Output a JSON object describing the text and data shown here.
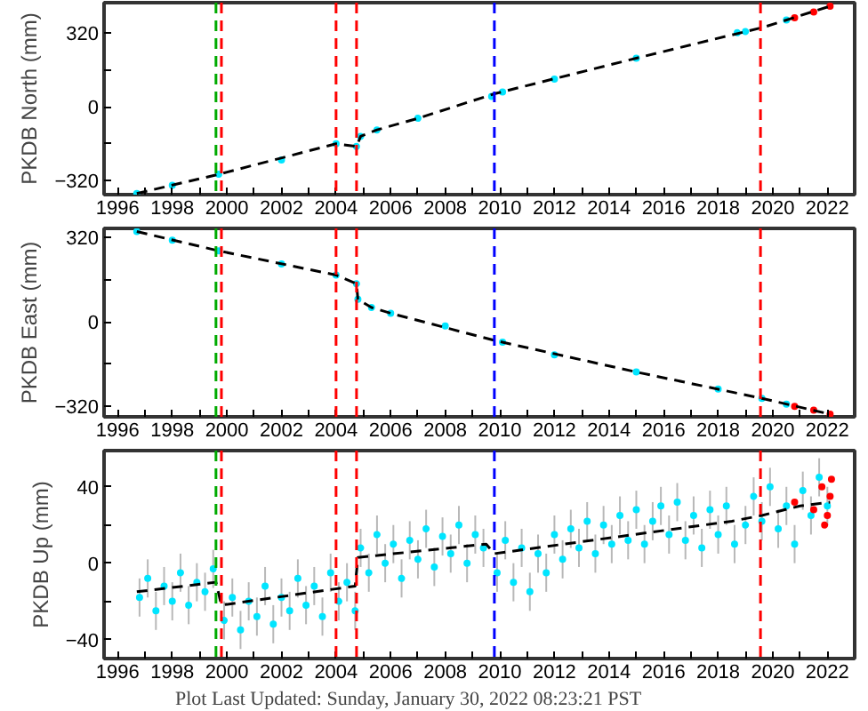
{
  "chart_data": [
    {
      "type": "scatter",
      "ylabel": "PKDB North (mm)",
      "xlim": [
        1995.5,
        2023
      ],
      "ylim": [
        -380,
        450
      ],
      "xticks": [
        1996,
        {
          "value": 1997,
          "label": null
        },
        1998,
        {
          "value": 1999,
          "label": null
        },
        2000,
        {
          "value": 2001,
          "label": null
        },
        2002,
        {
          "value": 2003,
          "label": null
        },
        2004,
        {
          "value": 2005,
          "label": null
        },
        2006,
        {
          "value": 2007,
          "label": null
        },
        2008,
        {
          "value": 2009,
          "label": null
        },
        2010,
        {
          "value": 2011,
          "label": null
        },
        2012,
        {
          "value": 2013,
          "label": null
        },
        2014,
        {
          "value": 2015,
          "label": null
        },
        2016,
        {
          "value": 2017,
          "label": null
        },
        2018,
        {
          "value": 2019,
          "label": null
        },
        2020,
        {
          "value": 2021,
          "label": null
        },
        2022
      ],
      "yticks": [
        {
          "value": -320,
          "label": "−320"
        },
        {
          "value": -160,
          "label": null
        },
        0,
        {
          "value": 160,
          "label": null
        },
        320
      ],
      "series": [
        {
          "marker": "circle",
          "color": "#00e5ff",
          "x": [
            1996.7,
            1998,
            1999.7,
            2002,
            2004,
            2004.75,
            2004.9,
            2005.5,
            2007,
            2009.7,
            2010.1,
            2012,
            2015,
            2018.7,
            2019,
            2020.5
          ],
          "values": [
            -375,
            -340,
            -292,
            -230,
            -160,
            -172,
            -128,
            -100,
            -50,
            45,
            64,
            120,
            210,
            320,
            325,
            375
          ]
        },
        {
          "marker": "circle",
          "color": "#ff0000",
          "x": [
            2020.8,
            2021.5,
            2022.1
          ],
          "values": [
            385,
            410,
            435
          ]
        },
        {
          "type": "line",
          "color": "#000000",
          "line_style": "dashed",
          "x": [
            1996.7,
            1999.7,
            2004,
            2004.75,
            2004.9,
            2005.5,
            2007,
            2009.8,
            2015,
            2019.7,
            2022.1
          ],
          "values": [
            -375,
            -292,
            -160,
            -172,
            -128,
            -100,
            -50,
            56,
            210,
            345,
            435
          ]
        }
      ],
      "ref_lines": [
        {
          "axis": "x",
          "value": 1999.6,
          "color": "#00aa00",
          "line_style": "dashed"
        },
        {
          "axis": "x",
          "value": 1999.8,
          "color": "#ff0000",
          "line_style": "dashed"
        },
        {
          "axis": "x",
          "value": 2004.0,
          "color": "#ff0000",
          "line_style": "dashed"
        },
        {
          "axis": "x",
          "value": 2004.75,
          "color": "#ff0000",
          "line_style": "dashed"
        },
        {
          "axis": "x",
          "value": 2009.8,
          "color": "#0000ff",
          "line_style": "dashed"
        },
        {
          "axis": "x",
          "value": 2019.55,
          "color": "#ff0000",
          "line_style": "dashed"
        }
      ]
    },
    {
      "type": "scatter",
      "ylabel": "PKDB East (mm)",
      "xlim": [
        1995.5,
        2023
      ],
      "ylim": [
        -360,
        355
      ],
      "xticks": [
        1996,
        {
          "value": 1997,
          "label": null
        },
        1998,
        {
          "value": 1999,
          "label": null
        },
        2000,
        {
          "value": 2001,
          "label": null
        },
        2002,
        {
          "value": 2003,
          "label": null
        },
        2004,
        {
          "value": 2005,
          "label": null
        },
        2006,
        {
          "value": 2007,
          "label": null
        },
        2008,
        {
          "value": 2009,
          "label": null
        },
        2010,
        {
          "value": 2011,
          "label": null
        },
        2012,
        {
          "value": 2013,
          "label": null
        },
        2014,
        {
          "value": 2015,
          "label": null
        },
        2016,
        {
          "value": 2017,
          "label": null
        },
        2018,
        {
          "value": 2019,
          "label": null
        },
        2020,
        {
          "value": 2021,
          "label": null
        },
        2022
      ],
      "yticks": [
        {
          "value": -320,
          "label": "−320"
        },
        {
          "value": -160,
          "label": null
        },
        0,
        {
          "value": 160,
          "label": null
        },
        320
      ],
      "series": [
        {
          "marker": "circle",
          "color": "#00e5ff",
          "x": [
            1996.7,
            1998,
            1999.7,
            2002,
            2004,
            2004.75,
            2004.8,
            2005.3,
            2006,
            2008,
            2010.1,
            2012,
            2015,
            2018,
            2019.6,
            2020.5
          ],
          "values": [
            343,
            310,
            270,
            220,
            178,
            145,
            86,
            55,
            33,
            -15,
            -77,
            -125,
            -190,
            -255,
            -290,
            -312
          ]
        },
        {
          "marker": "circle",
          "color": "#ff0000",
          "x": [
            2020.8,
            2021.5,
            2022.1
          ],
          "values": [
            -320,
            -335,
            -350
          ]
        },
        {
          "type": "line",
          "color": "#000000",
          "line_style": "dashed",
          "x": [
            1996.7,
            1999.7,
            2004,
            2004.75,
            2004.8,
            2005.3,
            2006,
            2009.8,
            2015,
            2019.6,
            2022.1
          ],
          "values": [
            343,
            270,
            178,
            145,
            86,
            55,
            33,
            -70,
            -190,
            -290,
            -350
          ]
        }
      ],
      "ref_lines": [
        {
          "axis": "x",
          "value": 1999.6,
          "color": "#00aa00",
          "line_style": "dashed"
        },
        {
          "axis": "x",
          "value": 1999.8,
          "color": "#ff0000",
          "line_style": "dashed"
        },
        {
          "axis": "x",
          "value": 2004.0,
          "color": "#ff0000",
          "line_style": "dashed"
        },
        {
          "axis": "x",
          "value": 2004.75,
          "color": "#ff0000",
          "line_style": "dashed"
        },
        {
          "axis": "x",
          "value": 2009.8,
          "color": "#0000ff",
          "line_style": "dashed"
        },
        {
          "axis": "x",
          "value": 2019.55,
          "color": "#ff0000",
          "line_style": "dashed"
        }
      ]
    },
    {
      "type": "scatter",
      "ylabel": "PKDB Up (mm)",
      "xlim": [
        1995.5,
        2023
      ],
      "ylim": [
        -50,
        59
      ],
      "xticks": [
        1996,
        {
          "value": 1997,
          "label": null
        },
        1998,
        {
          "value": 1999,
          "label": null
        },
        2000,
        {
          "value": 2001,
          "label": null
        },
        2002,
        {
          "value": 2003,
          "label": null
        },
        2004,
        {
          "value": 2005,
          "label": null
        },
        2006,
        {
          "value": 2007,
          "label": null
        },
        2008,
        {
          "value": 2009,
          "label": null
        },
        2010,
        {
          "value": 2011,
          "label": null
        },
        2012,
        {
          "value": 2013,
          "label": null
        },
        2014,
        {
          "value": 2015,
          "label": null
        },
        2016,
        {
          "value": 2017,
          "label": null
        },
        2018,
        {
          "value": 2019,
          "label": null
        },
        2020,
        {
          "value": 2021,
          "label": null
        },
        2022
      ],
      "yticks": [
        {
          "value": -40,
          "label": "−40"
        },
        {
          "value": -20,
          "label": null
        },
        0,
        {
          "value": 20,
          "label": null
        },
        40
      ],
      "series": [
        {
          "marker": "circle",
          "color": "#00e5ff",
          "errors": [
            10,
            10,
            10,
            10,
            10,
            10,
            10,
            10,
            10,
            10,
            10,
            10,
            10,
            10,
            10,
            10,
            10,
            10,
            10,
            10,
            10,
            10,
            10,
            10,
            10,
            10,
            10,
            10,
            10,
            10,
            10,
            10,
            10,
            10,
            10,
            10,
            10,
            10,
            10,
            10,
            10,
            10,
            10,
            10,
            10,
            10,
            10,
            10,
            10,
            10,
            10,
            10,
            10,
            10,
            10,
            10,
            10,
            10,
            10,
            10,
            10,
            10,
            10,
            10,
            10,
            10,
            10,
            10,
            10,
            10,
            10,
            10,
            10,
            10,
            10,
            10,
            10,
            10,
            10,
            10,
            10,
            10,
            10,
            10
          ],
          "x": [
            1996.8,
            1997.1,
            1997.4,
            1997.7,
            1998.0,
            1998.3,
            1998.6,
            1998.9,
            1999.2,
            1999.5,
            1999.9,
            2000.2,
            2000.5,
            2000.8,
            2001.1,
            2001.4,
            2001.7,
            2002.0,
            2002.3,
            2002.6,
            2002.9,
            2003.2,
            2003.5,
            2003.8,
            2004.1,
            2004.4,
            2004.7,
            2004.9,
            2005.2,
            2005.5,
            2005.8,
            2006.1,
            2006.4,
            2006.7,
            2007.0,
            2007.3,
            2007.6,
            2007.9,
            2008.2,
            2008.5,
            2008.8,
            2009.1,
            2009.4,
            2009.9,
            2010.2,
            2010.5,
            2010.8,
            2011.1,
            2011.4,
            2011.7,
            2012.0,
            2012.3,
            2012.6,
            2012.9,
            2013.2,
            2013.5,
            2013.8,
            2014.1,
            2014.4,
            2014.7,
            2015.0,
            2015.3,
            2015.6,
            2015.9,
            2016.2,
            2016.5,
            2016.8,
            2017.1,
            2017.4,
            2017.7,
            2018.0,
            2018.3,
            2018.6,
            2019.0,
            2019.3,
            2019.6,
            2019.9,
            2020.2,
            2020.5,
            2020.8,
            2021.1,
            2021.4,
            2021.7,
            2022.0
          ],
          "values": [
            -18,
            -8,
            -25,
            -12,
            -20,
            -5,
            -22,
            -10,
            -15,
            -3,
            -30,
            -18,
            -35,
            -20,
            -28,
            -12,
            -32,
            -18,
            -25,
            -8,
            -22,
            -12,
            -28,
            -5,
            -20,
            -10,
            -25,
            8,
            -5,
            15,
            0,
            10,
            -8,
            12,
            2,
            18,
            -2,
            14,
            5,
            20,
            0,
            15,
            8,
            -5,
            12,
            -10,
            8,
            -15,
            5,
            -5,
            15,
            2,
            18,
            8,
            22,
            5,
            20,
            10,
            25,
            12,
            28,
            10,
            22,
            30,
            15,
            32,
            12,
            25,
            8,
            28,
            15,
            30,
            10,
            20,
            35,
            22,
            40,
            18,
            30,
            10,
            38,
            25,
            45,
            30
          ]
        },
        {
          "marker": "circle",
          "color": "#ff0000",
          "x": [
            2020.8,
            2021.5,
            2021.8,
            2021.9,
            2022.0,
            2022.1,
            2022.15
          ],
          "values": [
            32,
            28,
            40,
            20,
            25,
            35,
            44
          ]
        },
        {
          "type": "line",
          "color": "#000000",
          "line_style": "dashed",
          "x": [
            1996.7,
            1999.6,
            1999.8,
            2004.7,
            2004.8,
            2009.5,
            2009.8,
            2018.5,
            2019.6,
            2021,
            2022.1
          ],
          "values": [
            -15,
            -10,
            -22,
            -12,
            3,
            10,
            5,
            22,
            25,
            30,
            32
          ]
        }
      ],
      "ref_lines": [
        {
          "axis": "x",
          "value": 1999.6,
          "color": "#00aa00",
          "line_style": "dashed"
        },
        {
          "axis": "x",
          "value": 1999.8,
          "color": "#ff0000",
          "line_style": "dashed"
        },
        {
          "axis": "x",
          "value": 2004.0,
          "color": "#ff0000",
          "line_style": "dashed"
        },
        {
          "axis": "x",
          "value": 2004.75,
          "color": "#ff0000",
          "line_style": "dashed"
        },
        {
          "axis": "x",
          "value": 2009.8,
          "color": "#0000ff",
          "line_style": "dashed"
        },
        {
          "axis": "x",
          "value": 2019.55,
          "color": "#ff0000",
          "line_style": "dashed"
        }
      ],
      "annotations": [
        "Plot Last Updated:   Sunday, January 30, 2022 08:23:21 PST"
      ]
    }
  ]
}
